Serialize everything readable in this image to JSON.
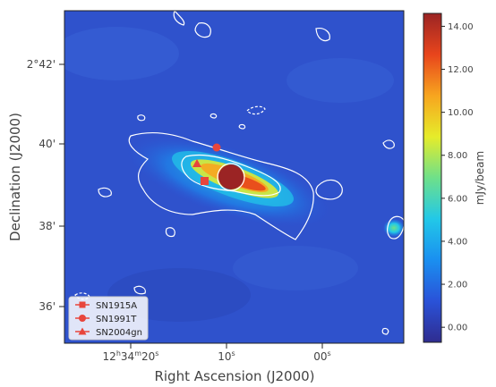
{
  "chart_data": {
    "type": "heatmap",
    "title": "",
    "xlabel": "Right Ascension (J2000)",
    "ylabel": "Declination (J2000)",
    "x_ticks": [
      {
        "label": "12h34m20s",
        "main": "12",
        "sup1": "h",
        "mid": "34",
        "sup2": "m",
        "end": "20",
        "sup3": "s"
      },
      {
        "label": "10s",
        "main": "10",
        "sup3": "s"
      },
      {
        "label": "00s",
        "main": "00",
        "sup3": "s"
      }
    ],
    "y_ticks": [
      "2°42'",
      "40'",
      "38'",
      "36'"
    ],
    "colorbar": {
      "label": "mJy/beam",
      "ticks": [
        "0.00",
        "2.00",
        "4.00",
        "6.00",
        "8.00",
        "10.00",
        "12.00",
        "14.00"
      ],
      "range": [
        -0.7,
        14.6
      ],
      "colors": [
        "#2f2c8f",
        "#2a52d8",
        "#1a8ff0",
        "#22c8e8",
        "#6ee08a",
        "#e6ec2a",
        "#f7a51f",
        "#e8451c",
        "#9b2424"
      ]
    },
    "legend": {
      "position": "lower-left",
      "entries": [
        {
          "name": "SN1915A",
          "marker": "square"
        },
        {
          "name": "SN1991T",
          "marker": "circle"
        },
        {
          "name": "SN2004gn",
          "marker": "triangle"
        }
      ]
    },
    "supernovae": [
      {
        "name": "SN1915A",
        "marker": "square"
      },
      {
        "name": "SN1991T",
        "marker": "circle"
      },
      {
        "name": "SN2004gn",
        "marker": "triangle"
      }
    ],
    "contour_color": "#ffffff",
    "marker_color": "#e8453c",
    "background_color": "#2f52cc"
  }
}
